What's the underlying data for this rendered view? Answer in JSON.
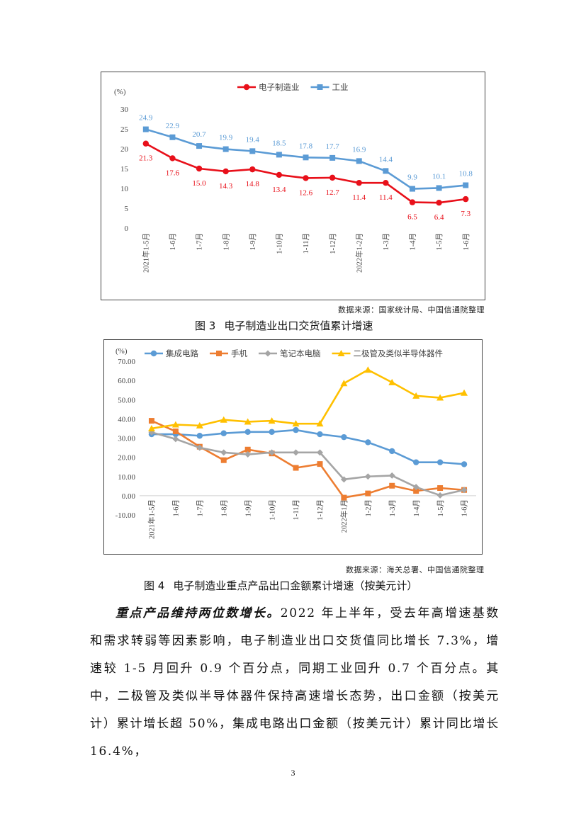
{
  "chart_data": [
    {
      "type": "line",
      "unit_label": "(%)",
      "categories": [
        "2021年1-5月",
        "1-6月",
        "1-7月",
        "1-8月",
        "1-9月",
        "1-10月",
        "1-11月",
        "1-12月",
        "2022年1-2月",
        "1-3月",
        "1-4月",
        "1-5月",
        "1-6月"
      ],
      "ylim": [
        0,
        30
      ],
      "yticks": [
        "0",
        "5",
        "10",
        "15",
        "20",
        "25",
        "30"
      ],
      "legend_position": "top",
      "series": [
        {
          "name": "电子制造业",
          "color": "#e8101a",
          "marker": "circle",
          "values": [
            21.3,
            17.6,
            15.0,
            14.3,
            14.8,
            13.4,
            12.6,
            12.7,
            11.4,
            11.4,
            6.5,
            6.4,
            7.3
          ],
          "labels": [
            "21.3",
            "17.6",
            "15.0",
            "14.3",
            "14.8",
            "13.4",
            "12.6",
            "12.7",
            "11.4",
            "11.4",
            "6.5",
            "6.4",
            "7.3"
          ]
        },
        {
          "name": "工业",
          "color": "#5b9bd5",
          "marker": "square",
          "values": [
            24.9,
            22.9,
            20.7,
            19.9,
            19.4,
            18.5,
            17.8,
            17.7,
            16.9,
            14.4,
            9.9,
            10.1,
            10.8
          ],
          "labels": [
            "24.9",
            "22.9",
            "20.7",
            "19.9",
            "19.4",
            "18.5",
            "17.8",
            "17.7",
            "16.9",
            "14.4",
            "9.9",
            "10.1",
            "10.8"
          ]
        }
      ]
    },
    {
      "type": "line",
      "unit_label": "(%)",
      "categories": [
        "2021年1-5月",
        "1-6月",
        "1-7月",
        "1-8月",
        "1-9月",
        "1-10月",
        "1-11月",
        "1-12月",
        "2022年1月",
        "1-2月",
        "1-3月",
        "1-4月",
        "1-5月",
        "1-6月"
      ],
      "ylim": [
        -10,
        70
      ],
      "yticks": [
        "-10.00",
        "0.00",
        "10.00",
        "20.00",
        "30.00",
        "40.00",
        "50.00",
        "60.00",
        "70.00"
      ],
      "legend_position": "top",
      "series": [
        {
          "name": "集成电路",
          "color": "#5b9bd5",
          "marker": "circle",
          "values": [
            32.0,
            32.0,
            31.2,
            32.5,
            33.2,
            33.2,
            34.2,
            32.0,
            30.5,
            27.8,
            23.2,
            17.4,
            17.4,
            16.4
          ]
        },
        {
          "name": "手机",
          "color": "#ed7d31",
          "marker": "square",
          "values": [
            39.0,
            33.5,
            25.5,
            18.5,
            24.0,
            22.0,
            14.5,
            16.5,
            -1.0,
            1.2,
            5.2,
            2.5,
            4.0,
            3.0
          ]
        },
        {
          "name": "笔记本电脑",
          "color": "#a5a5a5",
          "marker": "diamond",
          "values": [
            33.0,
            29.5,
            25.0,
            22.5,
            21.5,
            22.5,
            22.5,
            22.5,
            8.5,
            10.0,
            10.5,
            4.5,
            0.2,
            3.0
          ]
        },
        {
          "name": "二极管及类似半导体器件",
          "color": "#ffc000",
          "marker": "triangle",
          "values": [
            35.0,
            37.0,
            36.5,
            39.5,
            38.5,
            39.0,
            37.5,
            37.5,
            58.5,
            65.5,
            59.0,
            52.0,
            51.0,
            53.5
          ]
        }
      ]
    }
  ],
  "figure3": {
    "source": "数据来源：国家统计局、中国信通院整理",
    "number": "图 3",
    "title": "电子制造业出口交货值累计增速"
  },
  "figure4": {
    "source": "数据来源：海关总署、中国信通院整理",
    "number": "图 4",
    "title": "电子制造业重点产品出口金额累计增速（按美元计）"
  },
  "body": {
    "lead": "重点产品维持两位数增长。",
    "text": "2022 年上半年，受去年高增速基数和需求转弱等因素影响，电子制造业出口交货值同比增长 7.3%，增速较 1-5 月回升 0.9 个百分点，同期工业回升 0.7 个百分点。其中，二极管及类似半导体器件保持高速增长态势，出口金额（按美元计）累计增长超 50%，集成电路出口金额（按美元计）累计同比增长 16.4%，"
  },
  "page_number": "3"
}
